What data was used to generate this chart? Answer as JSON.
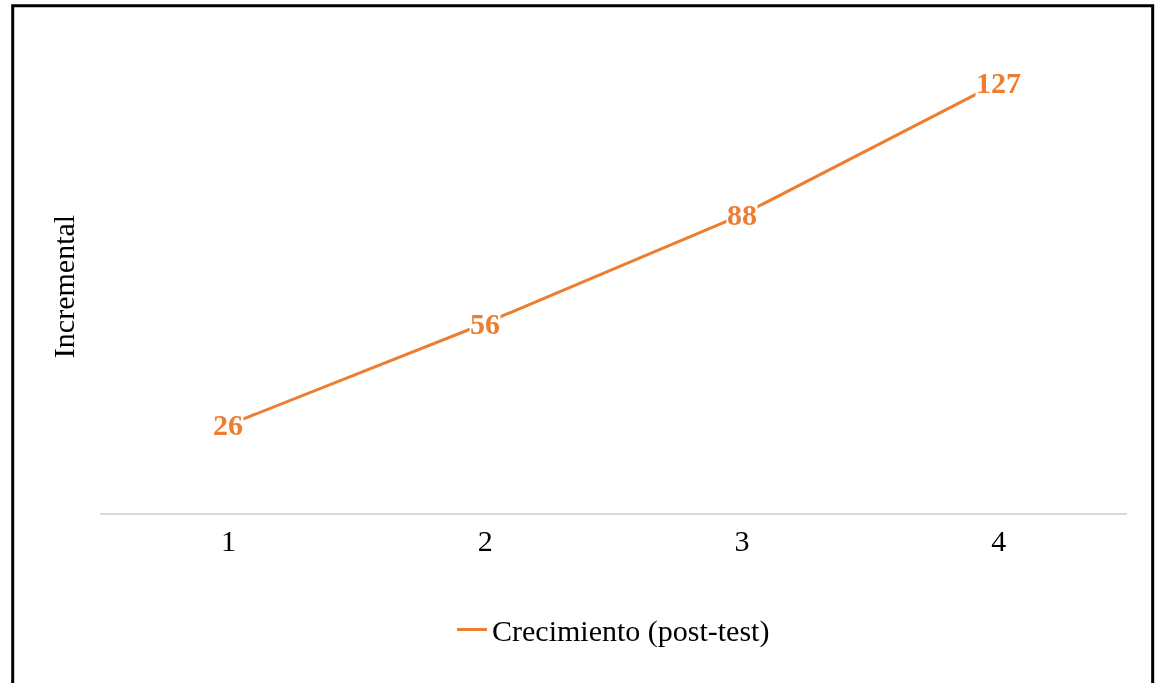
{
  "chart_data": {
    "type": "line",
    "ylabel": "Incremental",
    "categories": [
      "1",
      "2",
      "3",
      "4"
    ],
    "series": [
      {
        "name": "Crecimiento (post-test)",
        "color": "#ed7d31",
        "values": [
          26,
          56,
          88,
          127
        ]
      }
    ],
    "data_labels": true,
    "legend": "bottom",
    "tick_labels": "x",
    "line_style": "solid"
  }
}
